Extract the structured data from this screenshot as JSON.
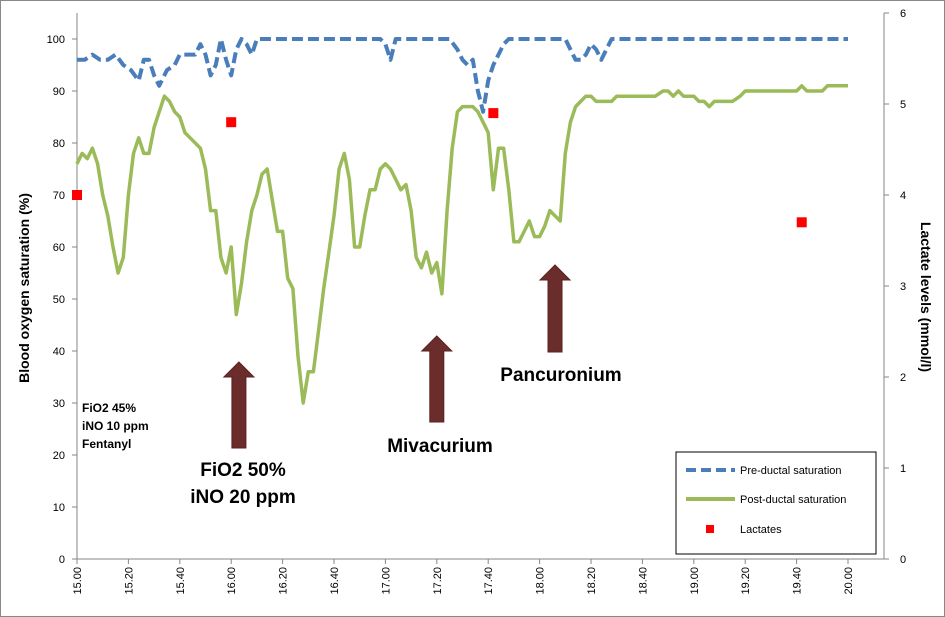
{
  "chart_data": {
    "type": "line",
    "xlabel": "",
    "ylabel": "Blood oxygen saturation (%)",
    "y2label": "Lactate levels (mmol/l)",
    "ylim": [
      0,
      105
    ],
    "y2lim": [
      0,
      6
    ],
    "yticks": [
      0,
      10,
      20,
      30,
      40,
      50,
      60,
      70,
      80,
      90,
      100
    ],
    "y2ticks": [
      0,
      1,
      2,
      3,
      4,
      5,
      6
    ],
    "x_tick_labels": [
      "15.00",
      "15.20",
      "15.40",
      "16.00",
      "16.20",
      "16.40",
      "17.00",
      "17.20",
      "17.40",
      "18.00",
      "18.20",
      "18.40",
      "19.00",
      "19.20",
      "19.40",
      "20.00"
    ],
    "x_unit": "minutes since 15.00",
    "xlim": [
      0,
      300
    ],
    "legend_position": "bottom-right",
    "series": [
      {
        "name": "Pre-ductal saturation",
        "color": "#4a7ebb",
        "style": "dashed",
        "axis": "left",
        "points": [
          [
            0,
            96
          ],
          [
            3,
            96
          ],
          [
            6,
            97
          ],
          [
            9,
            96
          ],
          [
            12,
            96
          ],
          [
            15,
            97
          ],
          [
            18,
            95
          ],
          [
            21,
            94
          ],
          [
            24,
            92
          ],
          [
            26,
            96
          ],
          [
            28,
            96
          ],
          [
            30,
            93
          ],
          [
            32,
            91
          ],
          [
            35,
            94
          ],
          [
            38,
            95
          ],
          [
            40,
            97
          ],
          [
            43,
            97
          ],
          [
            46,
            97
          ],
          [
            48,
            99
          ],
          [
            50,
            97
          ],
          [
            52,
            93
          ],
          [
            54,
            95
          ],
          [
            56,
            100
          ],
          [
            58,
            96
          ],
          [
            60,
            93
          ],
          [
            62,
            98
          ],
          [
            64,
            100
          ],
          [
            66,
            99
          ],
          [
            68,
            97
          ],
          [
            70,
            100
          ],
          [
            80,
            100
          ],
          [
            100,
            100
          ],
          [
            118,
            100
          ],
          [
            120,
            99
          ],
          [
            122,
            96
          ],
          [
            124,
            100
          ],
          [
            126,
            100
          ],
          [
            145,
            100
          ],
          [
            148,
            98
          ],
          [
            150,
            96
          ],
          [
            152,
            95
          ],
          [
            154,
            96
          ],
          [
            156,
            90
          ],
          [
            158,
            86
          ],
          [
            160,
            92
          ],
          [
            162,
            95
          ],
          [
            164,
            97
          ],
          [
            166,
            99
          ],
          [
            168,
            100
          ],
          [
            190,
            100
          ],
          [
            192,
            98
          ],
          [
            194,
            96
          ],
          [
            196,
            96
          ],
          [
            198,
            97
          ],
          [
            200,
            99
          ],
          [
            202,
            98
          ],
          [
            204,
            96
          ],
          [
            206,
            98
          ],
          [
            208,
            100
          ],
          [
            300,
            100
          ]
        ]
      },
      {
        "name": "Post-ductal saturation",
        "color": "#9bbb59",
        "style": "solid",
        "axis": "left",
        "points": [
          [
            0,
            76
          ],
          [
            2,
            78
          ],
          [
            4,
            77
          ],
          [
            6,
            79
          ],
          [
            8,
            76
          ],
          [
            10,
            70
          ],
          [
            12,
            66
          ],
          [
            14,
            60
          ],
          [
            16,
            55
          ],
          [
            18,
            58
          ],
          [
            20,
            70
          ],
          [
            22,
            78
          ],
          [
            24,
            81
          ],
          [
            26,
            78
          ],
          [
            28,
            78
          ],
          [
            30,
            83
          ],
          [
            32,
            86
          ],
          [
            34,
            89
          ],
          [
            36,
            88
          ],
          [
            38,
            86
          ],
          [
            40,
            85
          ],
          [
            42,
            82
          ],
          [
            44,
            81
          ],
          [
            46,
            80
          ],
          [
            48,
            79
          ],
          [
            50,
            75
          ],
          [
            52,
            67
          ],
          [
            54,
            67
          ],
          [
            56,
            58
          ],
          [
            58,
            55
          ],
          [
            60,
            60
          ],
          [
            62,
            47
          ],
          [
            64,
            53
          ],
          [
            66,
            61
          ],
          [
            68,
            67
          ],
          [
            70,
            70
          ],
          [
            72,
            74
          ],
          [
            74,
            75
          ],
          [
            76,
            69
          ],
          [
            78,
            63
          ],
          [
            80,
            63
          ],
          [
            82,
            54
          ],
          [
            84,
            52
          ],
          [
            86,
            39
          ],
          [
            88,
            30
          ],
          [
            90,
            36
          ],
          [
            92,
            36
          ],
          [
            94,
            44
          ],
          [
            96,
            52
          ],
          [
            98,
            59
          ],
          [
            100,
            66
          ],
          [
            102,
            75
          ],
          [
            104,
            78
          ],
          [
            106,
            73
          ],
          [
            108,
            60
          ],
          [
            110,
            60
          ],
          [
            112,
            66
          ],
          [
            114,
            71
          ],
          [
            116,
            71
          ],
          [
            118,
            75
          ],
          [
            120,
            76
          ],
          [
            122,
            75
          ],
          [
            124,
            73
          ],
          [
            126,
            71
          ],
          [
            128,
            72
          ],
          [
            130,
            67
          ],
          [
            132,
            58
          ],
          [
            134,
            56
          ],
          [
            136,
            59
          ],
          [
            138,
            55
          ],
          [
            140,
            57
          ],
          [
            142,
            51
          ],
          [
            144,
            67
          ],
          [
            146,
            79
          ],
          [
            148,
            86
          ],
          [
            150,
            87
          ],
          [
            152,
            87
          ],
          [
            154,
            87
          ],
          [
            156,
            86
          ],
          [
            158,
            84
          ],
          [
            160,
            82
          ],
          [
            162,
            71
          ],
          [
            164,
            79
          ],
          [
            166,
            79
          ],
          [
            168,
            71
          ],
          [
            170,
            61
          ],
          [
            172,
            61
          ],
          [
            174,
            63
          ],
          [
            176,
            65
          ],
          [
            178,
            62
          ],
          [
            180,
            62
          ],
          [
            182,
            64
          ],
          [
            184,
            67
          ],
          [
            186,
            66
          ],
          [
            188,
            65
          ],
          [
            190,
            78
          ],
          [
            192,
            84
          ],
          [
            194,
            87
          ],
          [
            196,
            88
          ],
          [
            198,
            89
          ],
          [
            200,
            89
          ],
          [
            202,
            88
          ],
          [
            204,
            88
          ],
          [
            206,
            88
          ],
          [
            208,
            88
          ],
          [
            210,
            89
          ],
          [
            212,
            89
          ],
          [
            215,
            89
          ],
          [
            220,
            89
          ],
          [
            225,
            89
          ],
          [
            228,
            90
          ],
          [
            230,
            90
          ],
          [
            232,
            89
          ],
          [
            234,
            90
          ],
          [
            236,
            89
          ],
          [
            240,
            89
          ],
          [
            242,
            88
          ],
          [
            244,
            88
          ],
          [
            246,
            87
          ],
          [
            248,
            88
          ],
          [
            250,
            88
          ],
          [
            255,
            88
          ],
          [
            258,
            89
          ],
          [
            260,
            90
          ],
          [
            265,
            90
          ],
          [
            270,
            90
          ],
          [
            275,
            90
          ],
          [
            280,
            90
          ],
          [
            282,
            91
          ],
          [
            284,
            90
          ],
          [
            290,
            90
          ],
          [
            292,
            91
          ],
          [
            300,
            91
          ]
        ]
      },
      {
        "name": "Lactates",
        "color": "#ff0000",
        "style": "markers",
        "axis": "right",
        "points": [
          [
            0,
            4.0
          ],
          [
            60,
            4.8
          ],
          [
            162,
            4.9
          ],
          [
            282,
            3.7
          ]
        ]
      }
    ],
    "annotations": [
      {
        "lines": [
          "FiO2 45%",
          "iNO 10 ppm",
          "Fentanyl"
        ]
      },
      {
        "lines": [
          "FiO2 50%",
          "iNO 20 ppm"
        ],
        "arrow_x": 63
      },
      {
        "lines": [
          "Mivacurium"
        ],
        "arrow_x": 140
      },
      {
        "lines": [
          "Pancuronium"
        ],
        "arrow_x": 186
      }
    ]
  }
}
